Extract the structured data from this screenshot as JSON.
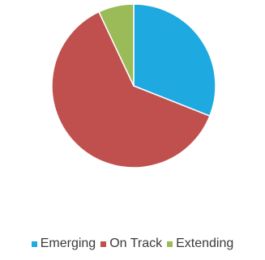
{
  "chart_data": {
    "type": "pie",
    "categories": [
      "Emerging",
      "On Track",
      "Extending"
    ],
    "values": [
      31,
      62,
      7
    ],
    "colors": [
      "#1fa9e1",
      "#c0504d",
      "#9bbb59"
    ],
    "start": "top",
    "direction": "clockwise",
    "legend": "bottom"
  }
}
